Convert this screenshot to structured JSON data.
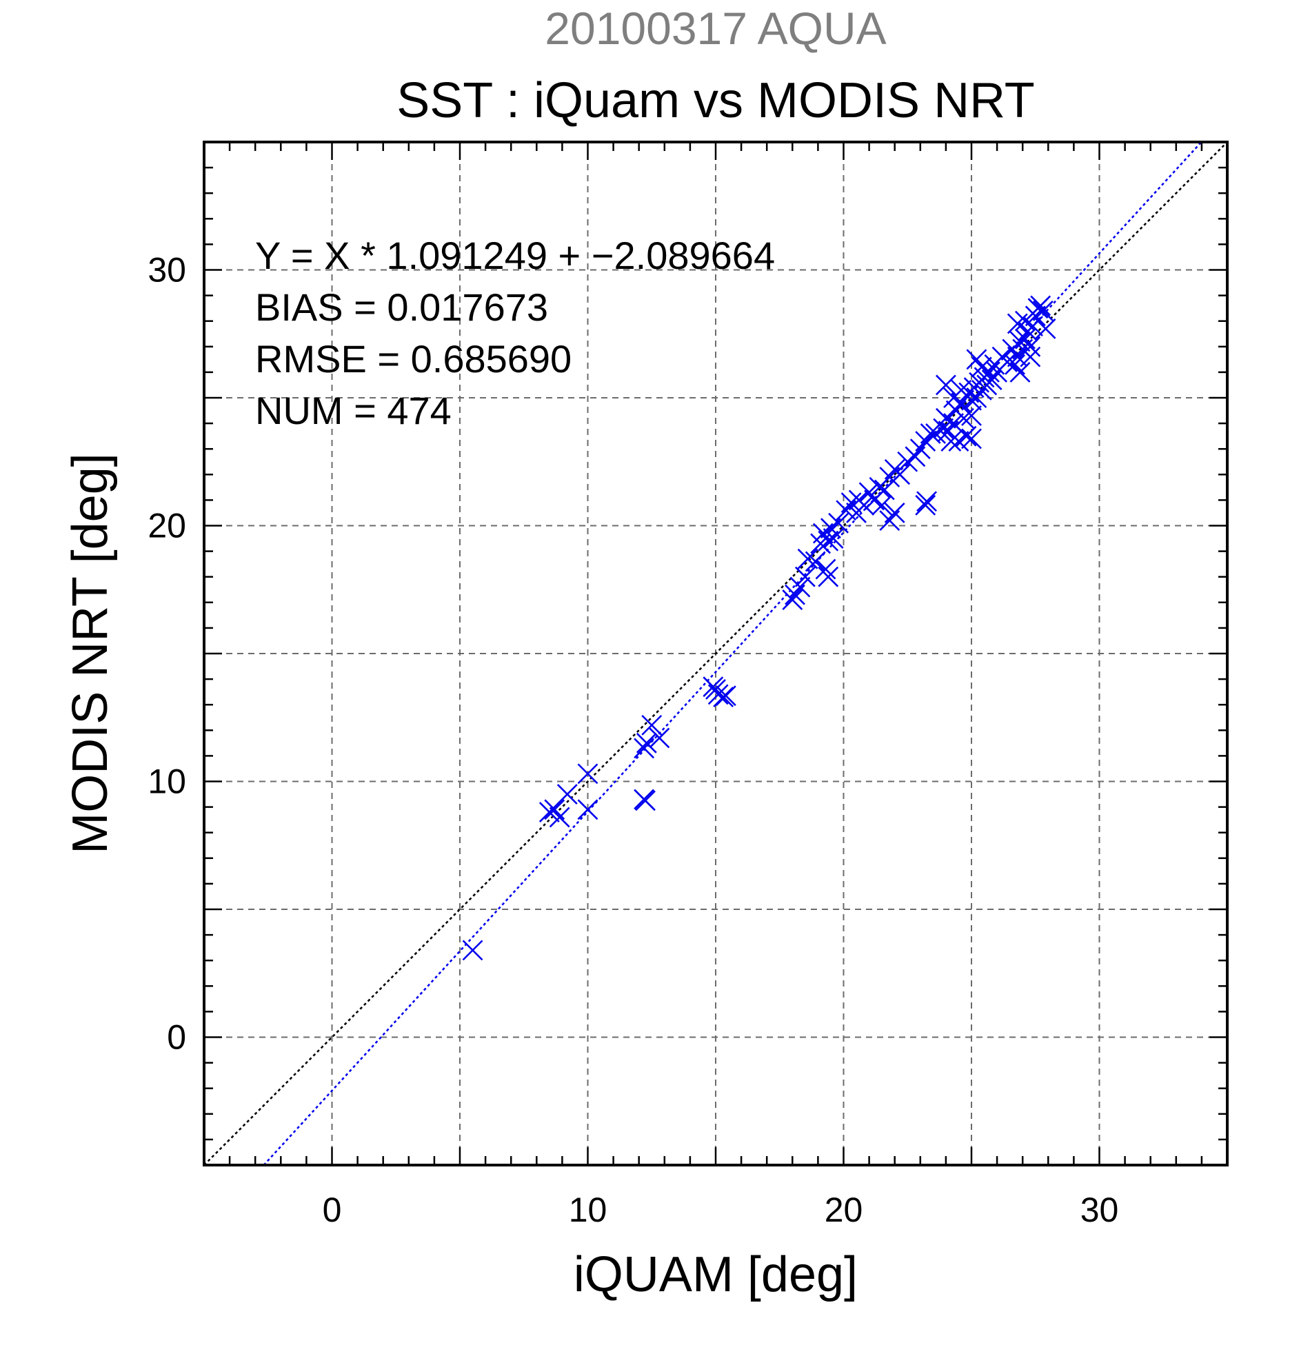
{
  "chart_data": {
    "type": "scatter",
    "supertitle": "20100317 AQUA",
    "title": "SST : iQuam vs MODIS NRT",
    "xlabel": "iQUAM [deg]",
    "ylabel": "MODIS NRT [deg]",
    "xlim": [
      -5,
      35
    ],
    "ylim": [
      -5,
      35
    ],
    "xticks": [
      0,
      10,
      20,
      30
    ],
    "yticks": [
      0,
      10,
      20,
      30
    ],
    "tick_labels": {
      "x": [
        "0",
        "10",
        "20",
        "30"
      ],
      "y": [
        "0",
        "10",
        "20",
        "30"
      ]
    },
    "grid": true,
    "grid_step": 5,
    "minor_tick_step": 1,
    "stats": {
      "fit": "Y = X * 1.091249 + −2.089664",
      "bias": "BIAS = 0.017673",
      "rmse": "RMSE = 0.685690",
      "num": "NUM = 474"
    },
    "reference_lines": [
      {
        "type": "identity",
        "slope": 1,
        "intercept": 0,
        "color": "#000000",
        "style": "dotted"
      },
      {
        "type": "regression",
        "slope": 1.091249,
        "intercept": -2.089664,
        "color": "#0000ee",
        "style": "dotted"
      }
    ],
    "marker": "x",
    "marker_color": "#0000ee",
    "points": [
      [
        5.5,
        3.4
      ],
      [
        8.5,
        8.8
      ],
      [
        8.7,
        8.9
      ],
      [
        9.2,
        9.5
      ],
      [
        10.0,
        10.3
      ],
      [
        10.0,
        8.9
      ],
      [
        8.9,
        8.6
      ],
      [
        12.2,
        11.3
      ],
      [
        12.3,
        11.5
      ],
      [
        12.5,
        12.2
      ],
      [
        12.8,
        11.7
      ],
      [
        12.2,
        9.3
      ],
      [
        12.25,
        9.25
      ],
      [
        14.9,
        13.7
      ],
      [
        15.1,
        13.4
      ],
      [
        15.3,
        13.3
      ],
      [
        15.4,
        13.35
      ],
      [
        15.0,
        13.6
      ],
      [
        18.0,
        17.1
      ],
      [
        18.1,
        17.3
      ],
      [
        18.3,
        17.6
      ],
      [
        18.5,
        18.0
      ],
      [
        18.6,
        18.7
      ],
      [
        18.9,
        18.6
      ],
      [
        19.1,
        19.3
      ],
      [
        19.2,
        19.7
      ],
      [
        19.4,
        19.4
      ],
      [
        19.5,
        19.9
      ],
      [
        19.6,
        19.5
      ],
      [
        19.8,
        20.1
      ],
      [
        19.3,
        18.3
      ],
      [
        19.4,
        18.0
      ],
      [
        20.1,
        20.6
      ],
      [
        20.3,
        20.9
      ],
      [
        20.5,
        20.5
      ],
      [
        20.6,
        21.0
      ],
      [
        20.8,
        20.8
      ],
      [
        21.0,
        21.3
      ],
      [
        21.2,
        21.0
      ],
      [
        21.4,
        21.5
      ],
      [
        21.6,
        21.4
      ],
      [
        21.8,
        21.9
      ],
      [
        22.0,
        22.2
      ],
      [
        22.2,
        22.0
      ],
      [
        21.5,
        20.8
      ],
      [
        21.8,
        20.2
      ],
      [
        22.0,
        20.5
      ],
      [
        22.5,
        22.5
      ],
      [
        22.8,
        22.7
      ],
      [
        23.0,
        23.0
      ],
      [
        23.2,
        23.3
      ],
      [
        23.4,
        23.6
      ],
      [
        23.2,
        20.8
      ],
      [
        23.25,
        20.95
      ],
      [
        23.6,
        23.6
      ],
      [
        23.9,
        23.8
      ],
      [
        24.0,
        24.2
      ],
      [
        24.1,
        23.7
      ],
      [
        24.2,
        23.3
      ],
      [
        24.3,
        24.0
      ],
      [
        24.4,
        24.5
      ],
      [
        24.5,
        23.3
      ],
      [
        24.6,
        24.8
      ],
      [
        24.7,
        24.2
      ],
      [
        24.8,
        23.5
      ],
      [
        24.9,
        25.2
      ],
      [
        25.0,
        24.9
      ],
      [
        25.0,
        23.4
      ],
      [
        25.1,
        25.4
      ],
      [
        25.2,
        25.0
      ],
      [
        25.3,
        25.6
      ],
      [
        25.4,
        25.3
      ],
      [
        25.5,
        25.8
      ],
      [
        25.6,
        25.5
      ],
      [
        25.7,
        26.0
      ],
      [
        25.8,
        25.7
      ],
      [
        25.9,
        26.3
      ],
      [
        26.0,
        26.0
      ],
      [
        24.0,
        25.5
      ],
      [
        24.3,
        25.0
      ],
      [
        24.6,
        25.3
      ],
      [
        25.2,
        26.5
      ],
      [
        25.4,
        26.2
      ],
      [
        25.0,
        24.3
      ],
      [
        26.2,
        26.6
      ],
      [
        26.4,
        26.4
      ],
      [
        26.6,
        26.9
      ],
      [
        26.8,
        26.6
      ],
      [
        26.9,
        27.2
      ],
      [
        27.0,
        26.9
      ],
      [
        26.7,
        26.3
      ],
      [
        26.9,
        26.0
      ],
      [
        27.1,
        27.3
      ],
      [
        27.2,
        27.6
      ],
      [
        27.3,
        27.0
      ],
      [
        27.4,
        27.8
      ],
      [
        27.5,
        28.2
      ],
      [
        27.6,
        28.5
      ],
      [
        27.7,
        28.6
      ],
      [
        27.8,
        28.4
      ],
      [
        27.9,
        27.7
      ],
      [
        27.3,
        26.6
      ],
      [
        27.1,
        28.0
      ],
      [
        26.8,
        27.9
      ]
    ]
  }
}
